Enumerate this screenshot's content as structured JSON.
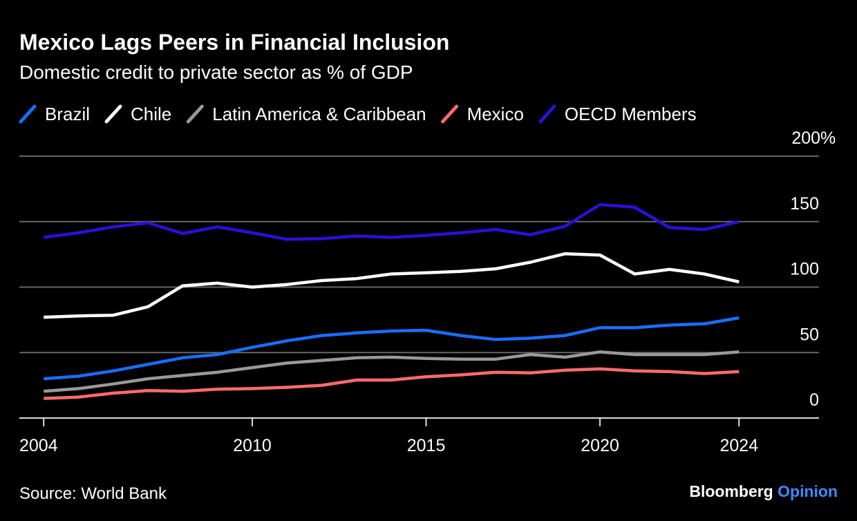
{
  "chart_data": {
    "type": "line",
    "title": "Mexico Lags Peers in Financial Inclusion",
    "subtitle": "Domestic credit to private sector as % of GDP",
    "source": "Source: World Bank",
    "brand": "Bloomberg",
    "brand_suffix": "Opinion",
    "x": [
      2004,
      2005,
      2006,
      2007,
      2008,
      2009,
      2010,
      2011,
      2012,
      2013,
      2014,
      2015,
      2016,
      2017,
      2018,
      2019,
      2020,
      2021,
      2022,
      2023,
      2024
    ],
    "xlim": [
      2003.3,
      2026.3
    ],
    "xticks": [
      2004,
      2010,
      2015,
      2020,
      2024
    ],
    "ylim": [
      0,
      200
    ],
    "yticks": [
      0,
      50,
      100,
      150,
      {
        "value": 200,
        "label": "200%"
      }
    ],
    "grid": true,
    "series": [
      {
        "name": "Brazil",
        "color": "#1a6dff",
        "values": [
          30,
          32,
          36,
          41,
          46,
          48.5,
          54,
          59,
          63,
          65,
          66.5,
          67,
          63,
          60,
          61,
          63,
          69,
          69,
          71,
          72,
          76.5
        ]
      },
      {
        "name": "Chile",
        "color": "#ffffff",
        "values": [
          77,
          78,
          78.5,
          85,
          101,
          103,
          100,
          102,
          105,
          106.5,
          110,
          111,
          112,
          114,
          119,
          125.5,
          124.5,
          110,
          113.5,
          110,
          104
        ]
      },
      {
        "name": "Latin America & Caribbean",
        "color": "#999999",
        "values": [
          20.5,
          22.5,
          26,
          30,
          32.5,
          35,
          38.5,
          42,
          44,
          46,
          46.5,
          45.5,
          45,
          45,
          48.5,
          46.5,
          50.5,
          48.5,
          48.5,
          48.5,
          50.5
        ]
      },
      {
        "name": "Mexico",
        "color": "#ff6b6b",
        "values": [
          15,
          16,
          19,
          21,
          20.5,
          22,
          22.5,
          23.5,
          25,
          29,
          29,
          31.5,
          33,
          35,
          34.5,
          36.5,
          37.5,
          36,
          35.5,
          34,
          35.5
        ]
      },
      {
        "name": "OECD Members",
        "color": "#2a10d8",
        "values": [
          138,
          141.5,
          146,
          149,
          141,
          146,
          141.5,
          136.5,
          137,
          139,
          138,
          139.5,
          141.5,
          144,
          140,
          146.5,
          163,
          161,
          145.5,
          144,
          150
        ]
      }
    ]
  }
}
